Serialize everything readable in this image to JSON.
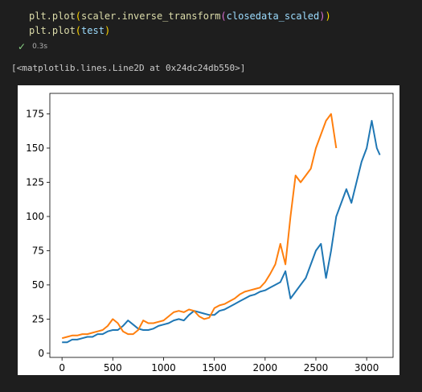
{
  "cell": {
    "code_line1_fn": "plt.plot",
    "code_line1_rest": "scaler.inverse_transform",
    "code_line1_arg": "closedata_scaled",
    "code_line2_fn": "plt.plot",
    "code_line2_arg": "test",
    "exec_time": "0.3s"
  },
  "output": {
    "repr_text": "[<matplotlib.lines.Line2D at 0x24dc24db550>]"
  },
  "colors": {
    "series1": "#1f77b4",
    "series2": "#ff7f0e",
    "status_ok": "#89d185"
  },
  "chart_data": {
    "type": "line",
    "xlim": [
      -120,
      3260
    ],
    "ylim": [
      -3,
      190
    ],
    "xticks": [
      0,
      500,
      1000,
      1500,
      2000,
      2500,
      3000
    ],
    "yticks": [
      0,
      25,
      50,
      75,
      100,
      125,
      150,
      175
    ],
    "series": [
      {
        "color": "#1f77b4",
        "x": [
          0,
          50,
          100,
          150,
          200,
          250,
          300,
          350,
          400,
          450,
          500,
          550,
          600,
          650,
          700,
          750,
          800,
          850,
          900,
          950,
          1000,
          1050,
          1100,
          1150,
          1200,
          1250,
          1300,
          1350,
          1400,
          1450,
          1500,
          1550,
          1600,
          1650,
          1700,
          1750,
          1800,
          1850,
          1900,
          1950,
          2000,
          2050,
          2100,
          2150,
          2200,
          2250,
          2300,
          2350,
          2400,
          2450,
          2500,
          2550,
          2600,
          2650,
          2700,
          2750,
          2800,
          2850,
          2900,
          2950,
          3000,
          3050,
          3100,
          3130
        ],
        "y": [
          8,
          8,
          10,
          10,
          11,
          12,
          12,
          14,
          14,
          16,
          17,
          17,
          20,
          24,
          21,
          18,
          17,
          17,
          18,
          20,
          21,
          22,
          24,
          25,
          24,
          28,
          31,
          30,
          29,
          28,
          28,
          31,
          32,
          34,
          36,
          38,
          40,
          42,
          43,
          45,
          46,
          48,
          50,
          52,
          60,
          40,
          45,
          50,
          55,
          65,
          75,
          80,
          55,
          75,
          100,
          110,
          120,
          110,
          125,
          140,
          150,
          170,
          150,
          145
        ]
      },
      {
        "color": "#ff7f0e",
        "x": [
          0,
          50,
          100,
          150,
          200,
          250,
          300,
          350,
          400,
          450,
          500,
          550,
          600,
          650,
          700,
          750,
          800,
          850,
          900,
          950,
          1000,
          1050,
          1100,
          1150,
          1200,
          1250,
          1300,
          1350,
          1400,
          1450,
          1500,
          1550,
          1600,
          1650,
          1700,
          1750,
          1800,
          1850,
          1900,
          1950,
          2000,
          2050,
          2100,
          2150,
          2200,
          2250,
          2300,
          2350,
          2400,
          2450,
          2500,
          2550,
          2600,
          2650,
          2700
        ],
        "y": [
          11,
          12,
          13,
          13,
          14,
          14,
          15,
          16,
          17,
          20,
          25,
          22,
          16,
          14,
          14,
          17,
          24,
          22,
          22,
          23,
          24,
          27,
          30,
          31,
          30,
          32,
          31,
          27,
          25,
          26,
          33,
          35,
          36,
          38,
          40,
          43,
          45,
          46,
          47,
          48,
          52,
          58,
          65,
          80,
          65,
          100,
          130,
          125,
          130,
          135,
          150,
          160,
          170,
          175,
          150
        ]
      }
    ]
  }
}
